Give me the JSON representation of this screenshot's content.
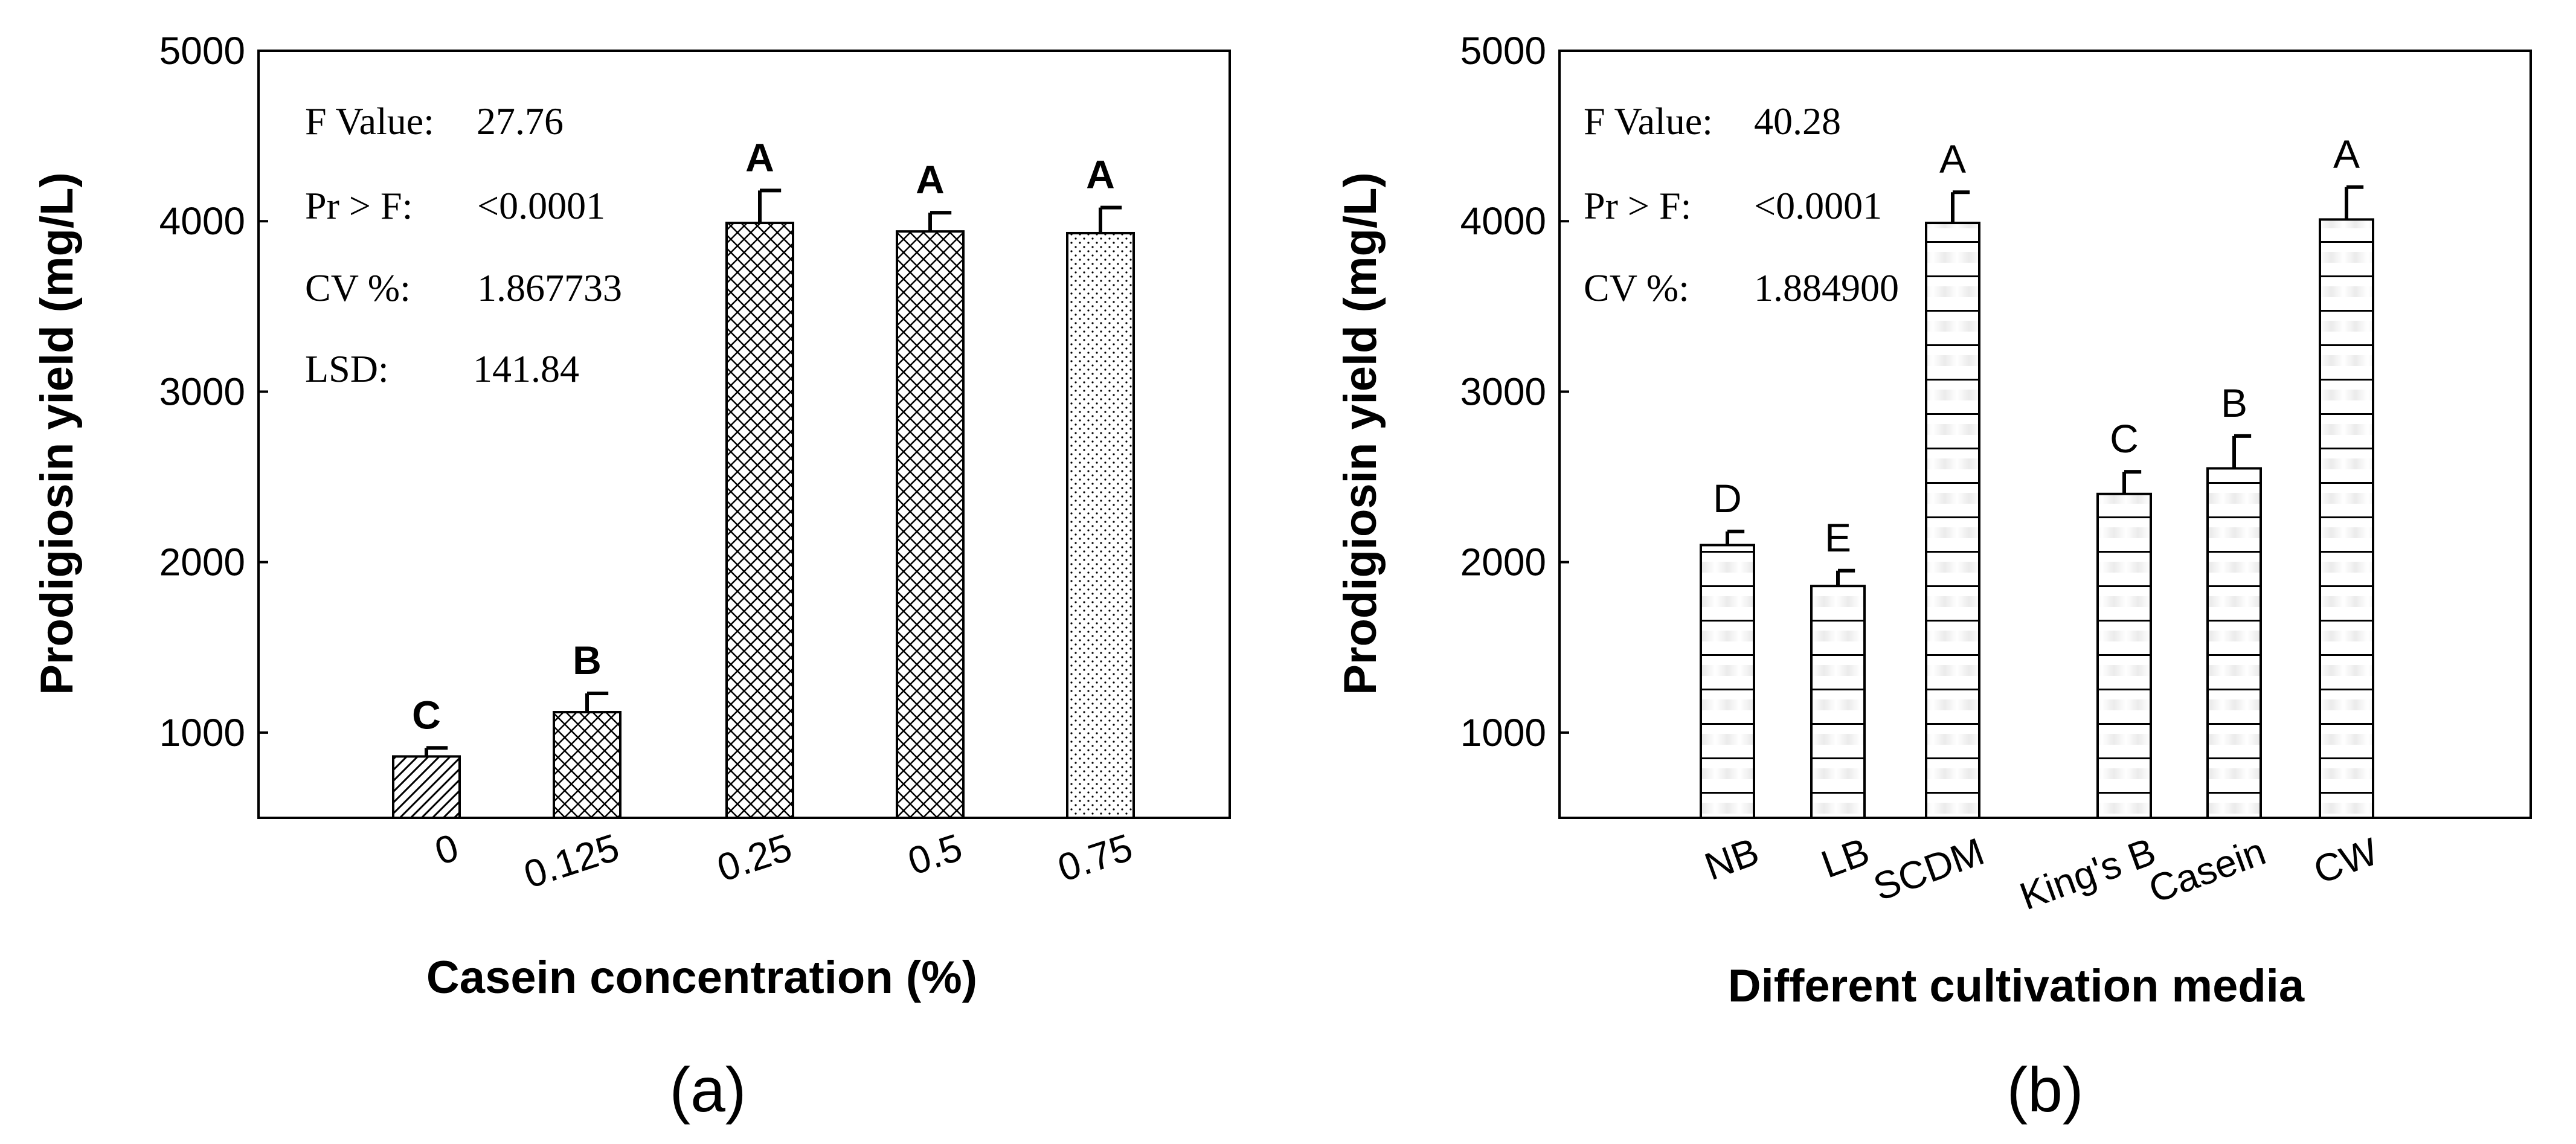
{
  "charts": [
    {
      "panel_label": "(a)",
      "xlabel": "Casein concentration (%)",
      "ylabel": "Prodigiosin yield (mg/L)",
      "yticks": [
        "1000",
        "2000",
        "3000",
        "4000",
        "5000"
      ],
      "stats": [
        {
          "label": "F Value:",
          "value": "27.76"
        },
        {
          "label": "Pr > F:",
          "value": "<0.0001"
        },
        {
          "label": "CV %:",
          "value": "1.867733"
        },
        {
          "label": "LSD:",
          "value": "141.84"
        }
      ]
    },
    {
      "panel_label": "(b)",
      "xlabel": "Different cultivation media",
      "ylabel": "Prodigiosin yield (mg/L)",
      "yticks": [
        "1000",
        "2000",
        "3000",
        "4000",
        "5000"
      ],
      "stats": [
        {
          "label": "F Value:",
          "value": "40.28"
        },
        {
          "label": "Pr > F:",
          "value": "<0.0001"
        },
        {
          "label": "CV %:",
          "value": "1.884900"
        }
      ]
    }
  ],
  "chart_data": [
    {
      "type": "bar",
      "title": "(a)",
      "categories": [
        "0",
        "0.125",
        "0.25",
        "0.5",
        "0.75"
      ],
      "values": [
        860,
        1120,
        3990,
        3940,
        3930
      ],
      "errors": [
        50,
        110,
        190,
        110,
        150
      ],
      "significance": [
        "C",
        "B",
        "A",
        "A",
        "A"
      ],
      "patterns": [
        "diag",
        "cross",
        "cross",
        "cross",
        "dots"
      ],
      "xlabel": "Casein concentration (%)",
      "ylabel": "Prodigiosin yield (mg/L)",
      "ylim": [
        500,
        5000
      ],
      "grid": false
    },
    {
      "type": "bar",
      "title": "(b)",
      "categories": [
        "NB",
        "LB",
        "SCDM",
        "King's B",
        "Casein",
        "CW"
      ],
      "values": [
        2100,
        1860,
        3990,
        2400,
        2550,
        4010
      ],
      "errors": [
        80,
        90,
        180,
        130,
        190,
        190
      ],
      "significance": [
        "D",
        "E",
        "A",
        "C",
        "B",
        "A"
      ],
      "patterns": [
        "hlines",
        "hlines",
        "hlines",
        "hlines",
        "hlines",
        "hlines"
      ],
      "xlabel": "Different cultivation media",
      "ylabel": "Prodigiosin yield (mg/L)",
      "ylim": [
        500,
        5000
      ],
      "grid": false
    }
  ]
}
